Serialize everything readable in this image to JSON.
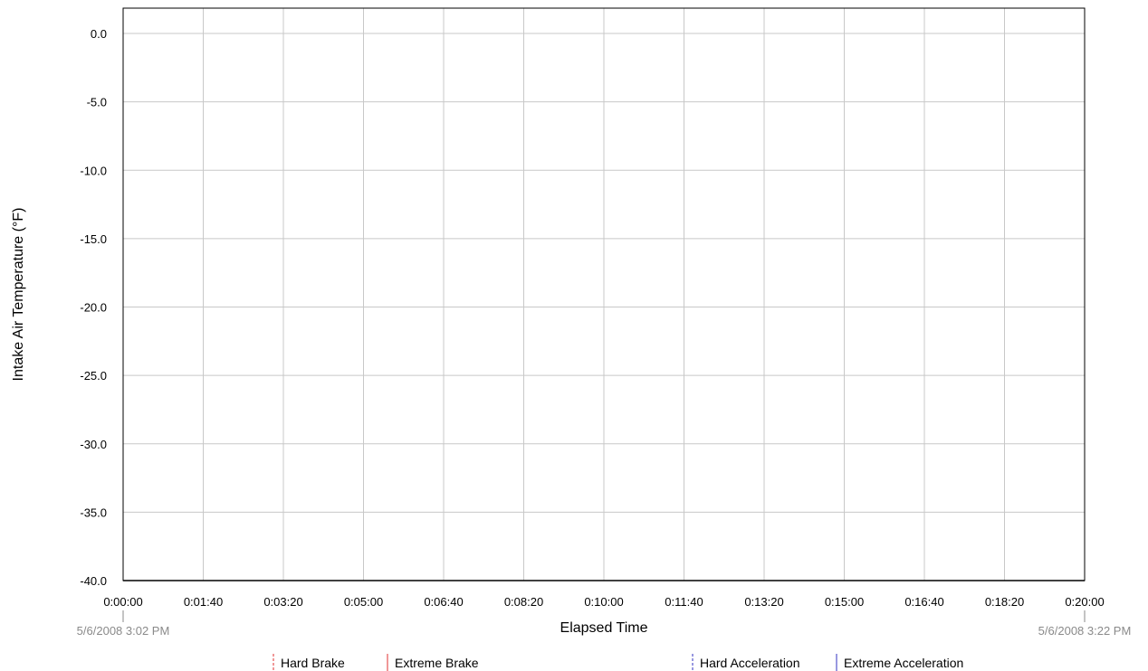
{
  "chart_data": {
    "type": "line",
    "xlabel": "Elapsed Time",
    "ylabel": "Intake Air Temperature (°F)",
    "ylim": [
      -40,
      0
    ],
    "y_ticks": [
      "0.0",
      "-5.0",
      "-10.0",
      "-15.0",
      "-20.0",
      "-25.0",
      "-30.0",
      "-35.0",
      "-40.0"
    ],
    "x_ticks": [
      "0:00:00",
      "0:01:40",
      "0:03:20",
      "0:05:00",
      "0:06:40",
      "0:08:20",
      "0:10:00",
      "0:11:40",
      "0:13:20",
      "0:15:00",
      "0:16:40",
      "0:18:20",
      "0:20:00"
    ],
    "x_range_seconds": [
      0,
      1200
    ],
    "start_stamp": "5/6/2008 3:02 PM",
    "end_stamp": "5/6/2008 3:22 PM",
    "grid": true,
    "series": [],
    "legend": [
      {
        "label": "Hard Brake",
        "color": "#e03030",
        "style": "dashed"
      },
      {
        "label": "Extreme Brake",
        "color": "#e03030",
        "style": "solid"
      },
      {
        "label": "Hard Acceleration",
        "color": "#3030c0",
        "style": "dashed"
      },
      {
        "label": "Extreme Acceleration",
        "color": "#3030c0",
        "style": "solid"
      }
    ]
  }
}
